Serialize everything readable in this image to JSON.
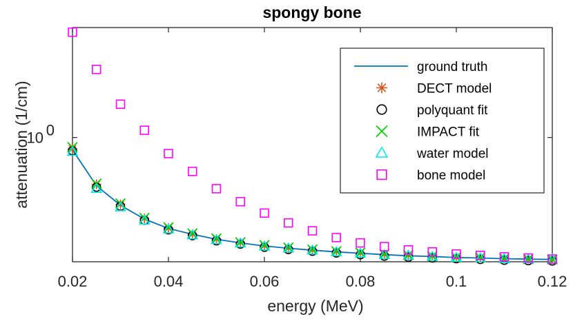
{
  "chart_data": {
    "type": "scatter",
    "title": "spongy bone",
    "xlabel": "energy (MeV)",
    "ylabel": "attenuation (1/cm)",
    "xlim": [
      0.02,
      0.12
    ],
    "ylim": [
      0.195,
      4.25
    ],
    "yscale": "log",
    "grid": false,
    "legend_position": "top-right",
    "x_ticks": [
      0.02,
      0.04,
      0.06,
      0.08,
      0.1,
      0.12
    ],
    "x_tick_labels": [
      "0.02",
      "0.04",
      "0.06",
      "0.08",
      "0.1",
      "0.12"
    ],
    "y_tick_label": {
      "value": 1.0,
      "base": "10",
      "exponent": "0"
    },
    "x": [
      0.02,
      0.025,
      0.03,
      0.035,
      0.04,
      0.045,
      0.05,
      0.055,
      0.06,
      0.065,
      0.07,
      0.075,
      0.08,
      0.085,
      0.09,
      0.095,
      0.1,
      0.105,
      0.11,
      0.115,
      0.12
    ],
    "series": [
      {
        "name": "ground truth",
        "marker": "line",
        "color": "#0072BD",
        "values": [
          0.85,
          0.53,
          0.41,
          0.342,
          0.302,
          0.28,
          0.262,
          0.25,
          0.24,
          0.233,
          0.227,
          0.222,
          0.218,
          0.214,
          0.211,
          0.209,
          0.206,
          0.205,
          0.203,
          0.202,
          0.201
        ]
      },
      {
        "name": "DECT model",
        "marker": "asterisk",
        "color": "#D95319",
        "values": [
          0.86,
          0.54,
          0.415,
          0.345,
          0.304,
          0.281,
          0.263,
          0.251,
          0.241,
          0.234,
          0.228,
          0.223,
          0.219,
          0.215,
          0.212,
          0.21,
          0.207,
          0.206,
          0.204,
          0.203,
          0.202
        ]
      },
      {
        "name": "polyquant fit",
        "marker": "circle",
        "color": "#000000",
        "values": [
          0.84,
          0.52,
          0.405,
          0.337,
          0.297,
          0.275,
          0.257,
          0.246,
          0.236,
          0.229,
          0.224,
          0.219,
          0.214,
          0.21,
          0.207,
          0.205,
          0.203,
          0.201,
          0.199,
          0.198,
          0.197
        ]
      },
      {
        "name": "IMPACT fit",
        "marker": "x",
        "color": "#00D000",
        "values": [
          0.88,
          0.545,
          0.42,
          0.347,
          0.307,
          0.283,
          0.265,
          0.252,
          0.243,
          0.235,
          0.229,
          0.224,
          0.22,
          0.216,
          0.213,
          0.21,
          0.207,
          0.206,
          0.204,
          0.202,
          0.201
        ]
      },
      {
        "name": "water model",
        "marker": "triangle",
        "color": "#00E8E8",
        "values": [
          0.83,
          0.51,
          0.4,
          0.336,
          0.299,
          0.277,
          0.26,
          0.249,
          0.239,
          0.233,
          0.227,
          0.222,
          0.218,
          0.214,
          0.212,
          0.209,
          0.206,
          0.205,
          0.203,
          0.202,
          0.201
        ]
      },
      {
        "name": "bone model",
        "marker": "square",
        "color": "#FF00FF",
        "values": [
          4.0,
          2.45,
          1.55,
          1.1,
          0.81,
          0.64,
          0.51,
          0.43,
          0.37,
          0.325,
          0.293,
          0.268,
          0.25,
          0.238,
          0.228,
          0.222,
          0.216,
          0.212,
          0.208,
          0.205,
          0.202
        ]
      }
    ]
  }
}
